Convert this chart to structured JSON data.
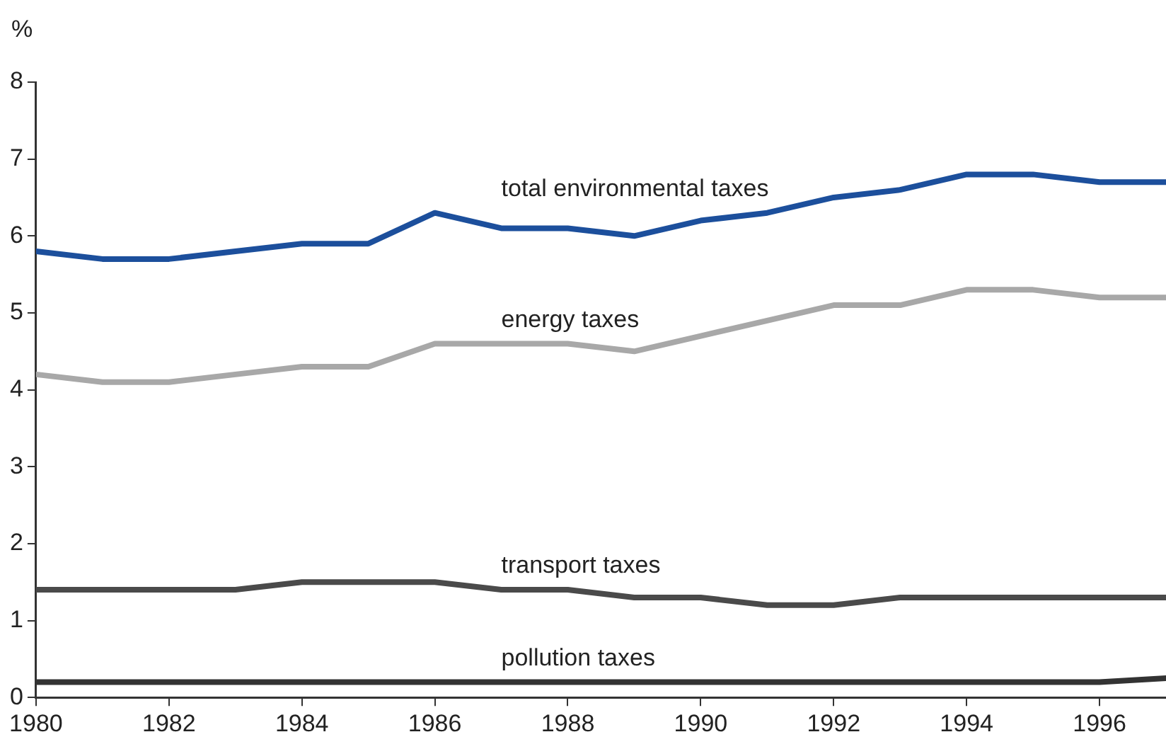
{
  "chart_data": {
    "type": "line",
    "ylabel": "%",
    "x": [
      1980,
      1981,
      1982,
      1983,
      1984,
      1985,
      1986,
      1987,
      1988,
      1989,
      1990,
      1991,
      1992,
      1993,
      1994,
      1995,
      1996,
      1997
    ],
    "xlim": [
      1980,
      1997
    ],
    "xticks": [
      1980,
      1982,
      1984,
      1986,
      1988,
      1990,
      1992,
      1994,
      1996
    ],
    "ylim": [
      0,
      8
    ],
    "yticks": [
      0,
      1,
      2,
      3,
      4,
      5,
      6,
      7,
      8
    ],
    "grid": false,
    "legend": false,
    "marker": "none",
    "line_style": "solid",
    "series": [
      {
        "name": "total environmental taxes",
        "color": "#1c4f9c",
        "values": [
          5.8,
          5.7,
          5.7,
          5.8,
          5.9,
          5.9,
          6.3,
          6.1,
          6.1,
          6.0,
          6.2,
          6.3,
          6.5,
          6.6,
          6.8,
          6.8,
          6.7,
          6.7
        ]
      },
      {
        "name": "energy taxes",
        "color": "#a8a8a8",
        "values": [
          4.2,
          4.1,
          4.1,
          4.2,
          4.3,
          4.3,
          4.6,
          4.6,
          4.6,
          4.5,
          4.7,
          4.9,
          5.1,
          5.1,
          5.3,
          5.3,
          5.2,
          5.2
        ]
      },
      {
        "name": "transport taxes",
        "color": "#4a4a4a",
        "values": [
          1.4,
          1.4,
          1.4,
          1.4,
          1.5,
          1.5,
          1.5,
          1.4,
          1.4,
          1.3,
          1.3,
          1.2,
          1.2,
          1.3,
          1.3,
          1.3,
          1.3,
          1.3
        ]
      },
      {
        "name": "pollution taxes",
        "color": "#333333",
        "values": [
          0.2,
          0.2,
          0.2,
          0.2,
          0.2,
          0.2,
          0.2,
          0.2,
          0.2,
          0.2,
          0.2,
          0.2,
          0.2,
          0.2,
          0.2,
          0.2,
          0.2,
          0.25
        ]
      }
    ]
  }
}
